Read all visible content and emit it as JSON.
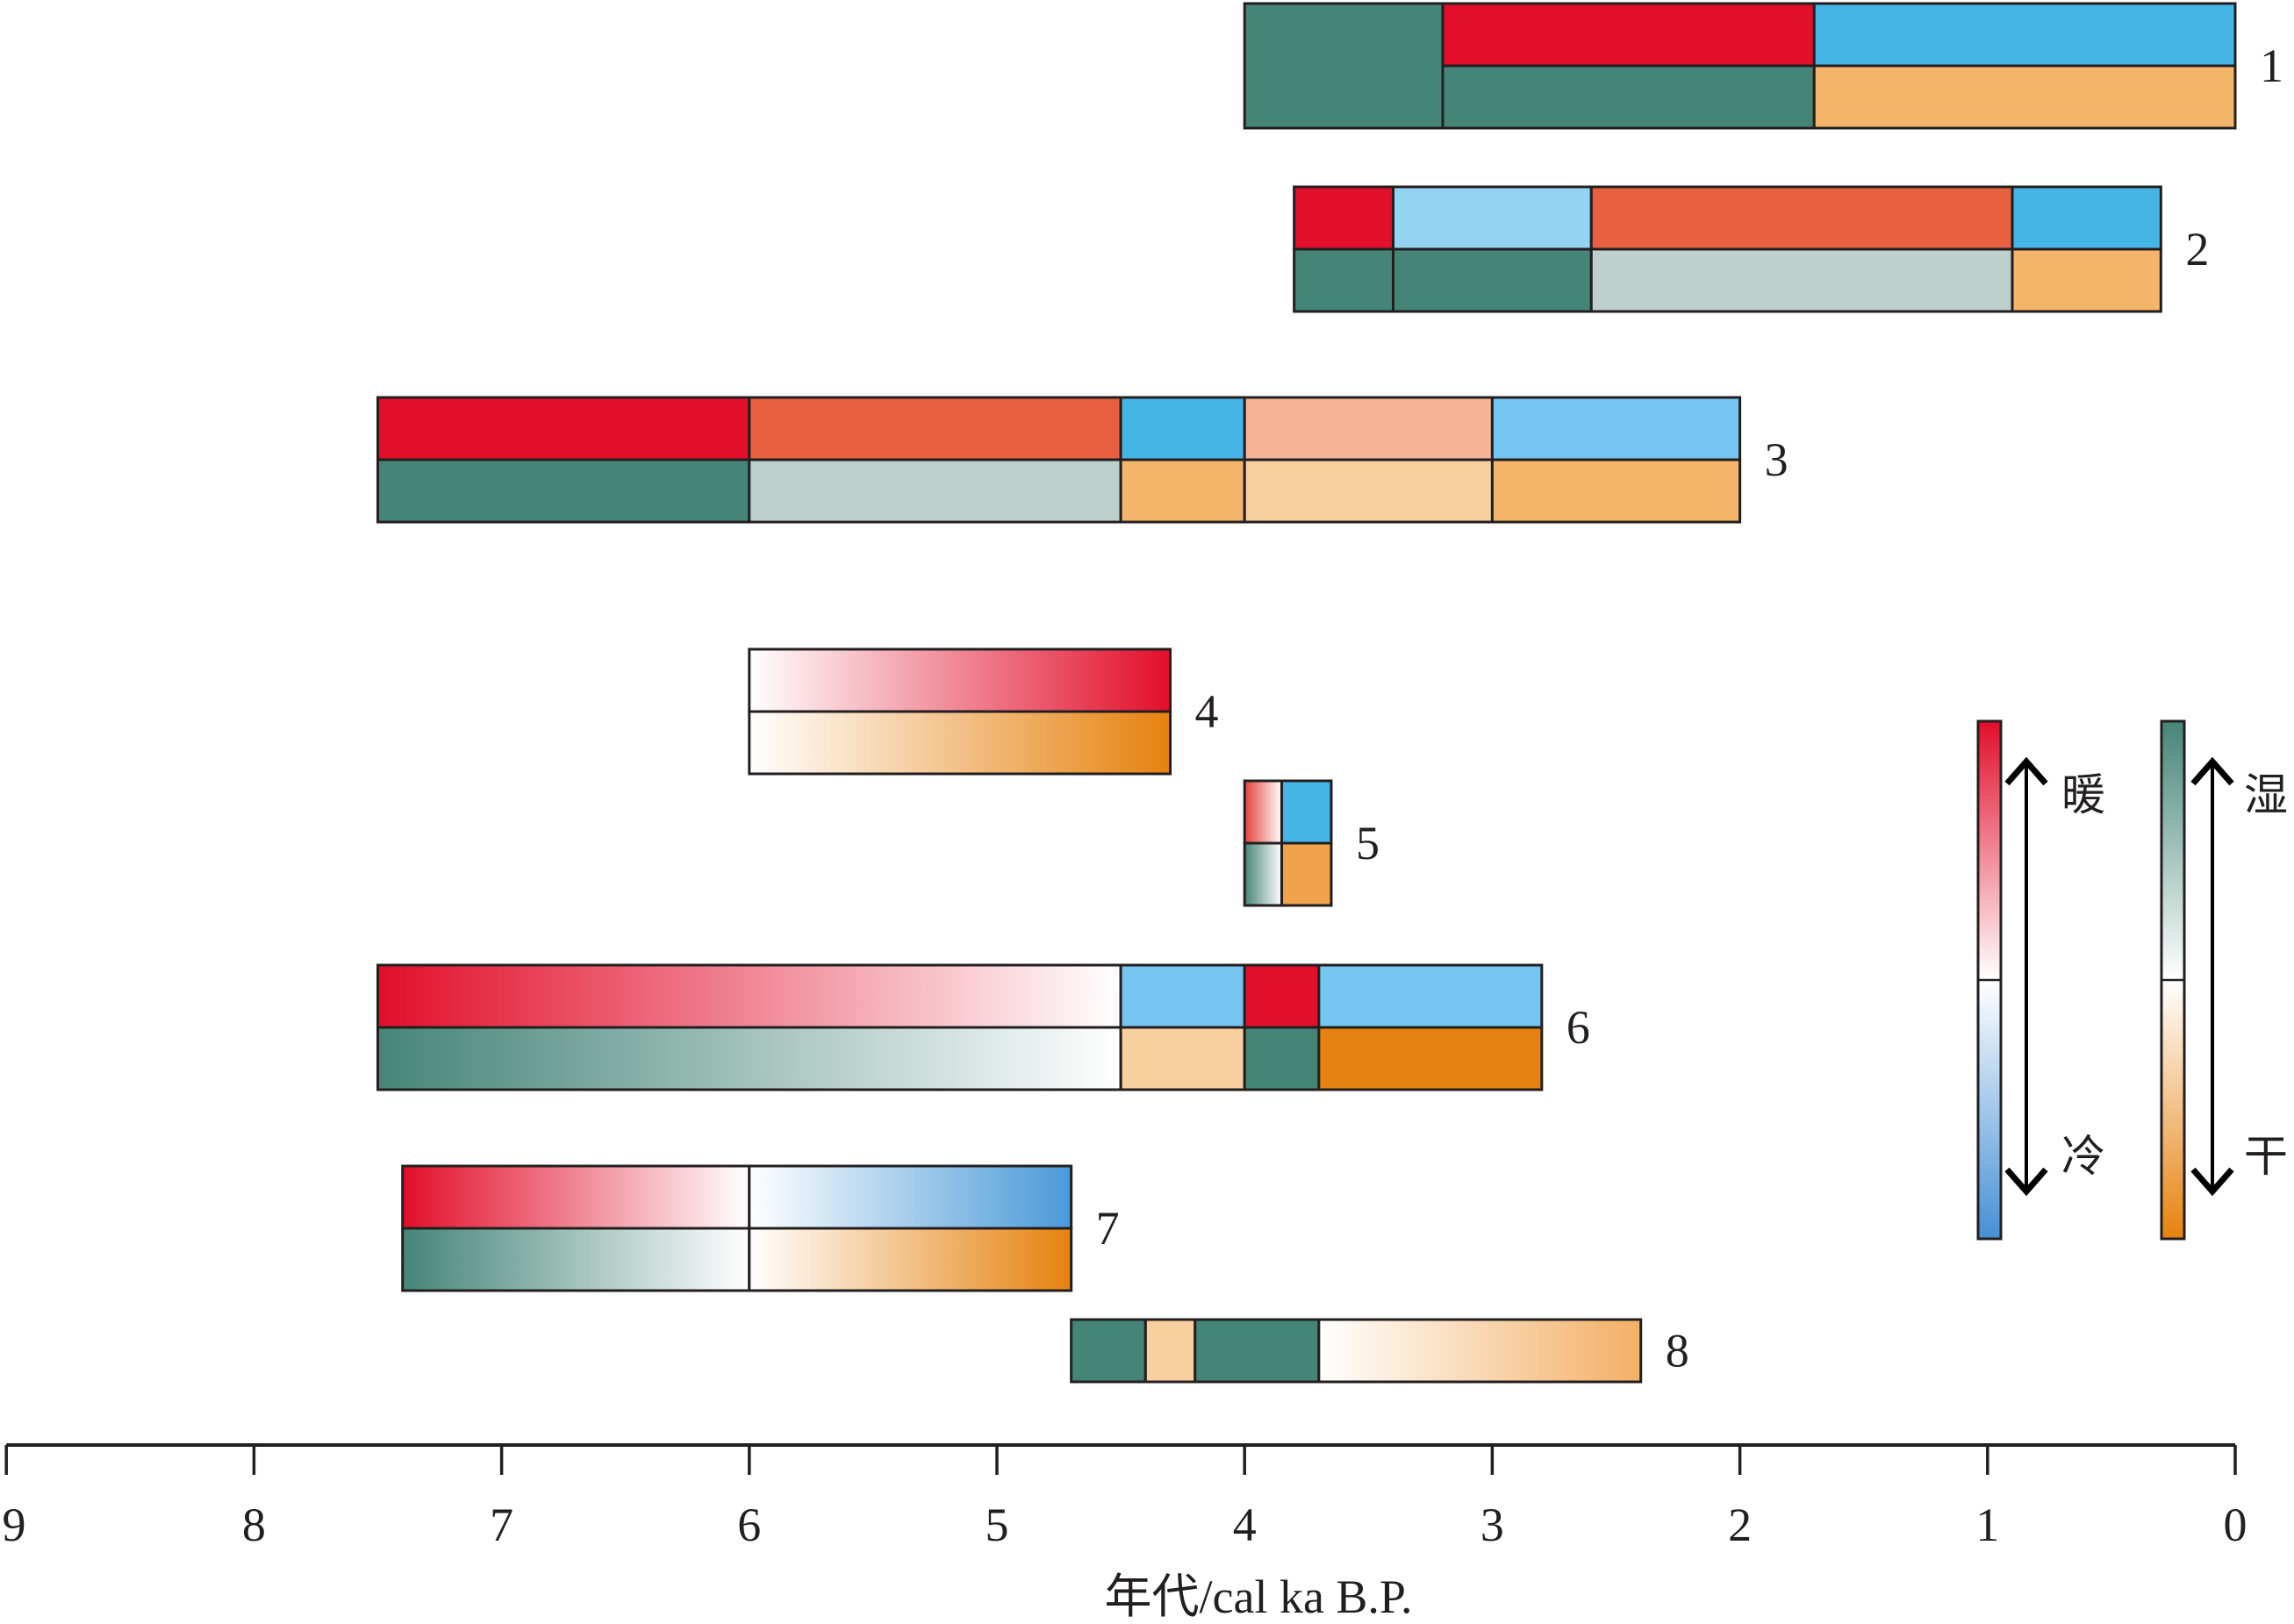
{
  "chart_data": {
    "type": "bar",
    "xlabel": "年代/cal ka B.P.",
    "xlim": [
      9,
      0
    ],
    "x_ticks": [
      "9",
      "8",
      "7",
      "6",
      "5",
      "4",
      "3",
      "2",
      "1",
      "0"
    ],
    "grid": false,
    "legend_placement": "right",
    "records": [
      {
        "label": "1",
        "temperature": [
          {
            "from": 3.2,
            "to": 1.7,
            "fill": "#e20e2a"
          },
          {
            "from": 1.7,
            "to": 0.0,
            "fill": "#45b5e8"
          }
        ],
        "moisture": [
          {
            "from": 4.0,
            "to": 3.2,
            "fill": "#458577",
            "span_both_rows": true
          },
          {
            "from": 3.2,
            "to": 1.7,
            "fill": "#458577"
          },
          {
            "from": 1.7,
            "to": 0.0,
            "fill": "#f4b46a"
          }
        ]
      },
      {
        "label": "2",
        "temperature": [
          {
            "from": 3.8,
            "to": 3.4,
            "fill": "#e20e2a"
          },
          {
            "from": 3.4,
            "to": 2.6,
            "fill": "#95d3f3"
          },
          {
            "from": 2.6,
            "to": 0.9,
            "fill": "#e8603f"
          },
          {
            "from": 0.9,
            "to": 0.3,
            "fill": "#45b5e8"
          }
        ],
        "moisture": [
          {
            "from": 3.8,
            "to": 3.4,
            "fill": "#458577"
          },
          {
            "from": 3.4,
            "to": 2.6,
            "fill": "#458577"
          },
          {
            "from": 2.6,
            "to": 0.9,
            "fill": "#bccfcb"
          },
          {
            "from": 0.9,
            "to": 0.3,
            "fill": "#f4b46a"
          }
        ]
      },
      {
        "label": "3",
        "temperature": [
          {
            "from": 7.5,
            "to": 6.0,
            "fill": "#e20e2a"
          },
          {
            "from": 6.0,
            "to": 4.5,
            "fill": "#e8603f"
          },
          {
            "from": 4.5,
            "to": 4.0,
            "fill": "#45b5e8"
          },
          {
            "from": 4.0,
            "to": 3.0,
            "fill": "#f7b598"
          },
          {
            "from": 3.0,
            "to": 2.0,
            "fill": "#74c6f0"
          }
        ],
        "moisture": [
          {
            "from": 7.5,
            "to": 6.0,
            "fill": "#458577"
          },
          {
            "from": 6.0,
            "to": 4.5,
            "fill": "#bccfcb"
          },
          {
            "from": 4.5,
            "to": 4.0,
            "fill": "#f4b46a"
          },
          {
            "from": 4.0,
            "to": 3.0,
            "fill": "#f8cf9f"
          },
          {
            "from": 3.0,
            "to": 2.0,
            "fill": "#f4b46a"
          }
        ]
      },
      {
        "label": "4",
        "temperature": [
          {
            "from": 6.0,
            "to": 4.3,
            "gradient": [
              "#ffffff",
              "#e20e2a"
            ]
          }
        ],
        "moisture": [
          {
            "from": 6.0,
            "to": 4.3,
            "gradient": [
              "#ffffff",
              "#e6820f"
            ]
          }
        ]
      },
      {
        "label": "5",
        "temperature": [
          {
            "from": 4.0,
            "to": 3.85,
            "gradient": [
              "#e6403a",
              "#ffffff"
            ]
          },
          {
            "from": 3.85,
            "to": 3.65,
            "fill": "#45b5e8"
          }
        ],
        "moisture": [
          {
            "from": 4.0,
            "to": 3.85,
            "gradient": [
              "#458577",
              "#ffffff"
            ]
          },
          {
            "from": 3.85,
            "to": 3.65,
            "fill": "#f0a34c"
          }
        ]
      },
      {
        "label": "6",
        "temperature": [
          {
            "from": 7.5,
            "to": 4.5,
            "gradient": [
              "#e20e2a",
              "#ffffff"
            ]
          },
          {
            "from": 4.5,
            "to": 4.0,
            "fill": "#74c6f0"
          },
          {
            "from": 4.0,
            "to": 3.7,
            "fill": "#e20e2a"
          },
          {
            "from": 3.7,
            "to": 2.8,
            "fill": "#74c6f0"
          }
        ],
        "moisture": [
          {
            "from": 7.5,
            "to": 4.5,
            "gradient": [
              "#458577",
              "#ffffff"
            ]
          },
          {
            "from": 4.5,
            "to": 4.0,
            "fill": "#f8cf9f"
          },
          {
            "from": 4.0,
            "to": 3.7,
            "fill": "#458577"
          },
          {
            "from": 3.7,
            "to": 2.8,
            "fill": "#e6820f"
          }
        ]
      },
      {
        "label": "7",
        "temperature": [
          {
            "from": 7.4,
            "to": 6.0,
            "gradient": [
              "#e20e2a",
              "#ffffff"
            ]
          },
          {
            "from": 6.0,
            "to": 4.7,
            "gradient": [
              "#ffffff",
              "#4a9ad8"
            ]
          }
        ],
        "moisture": [
          {
            "from": 7.4,
            "to": 6.0,
            "gradient": [
              "#458577",
              "#ffffff"
            ]
          },
          {
            "from": 6.0,
            "to": 4.7,
            "gradient": [
              "#ffffff",
              "#e6820f"
            ]
          }
        ]
      },
      {
        "label": "8",
        "temperature": [],
        "moisture": [
          {
            "from": 4.7,
            "to": 4.4,
            "fill": "#458577"
          },
          {
            "from": 4.4,
            "to": 4.2,
            "fill": "#f8cf9f"
          },
          {
            "from": 4.2,
            "to": 3.7,
            "fill": "#458577"
          },
          {
            "from": 3.7,
            "to": 2.4,
            "gradient": [
              "#ffffff",
              "#f3b066"
            ]
          }
        ]
      }
    ],
    "legend": {
      "temperature": {
        "top_label": "暖",
        "bottom_label": "冷",
        "colors": [
          "#e20e2a",
          "#ffffff",
          "#4590d6"
        ]
      },
      "moisture": {
        "top_label": "湿",
        "bottom_label": "干",
        "colors": [
          "#458577",
          "#ffffff",
          "#e6820f"
        ]
      }
    }
  }
}
